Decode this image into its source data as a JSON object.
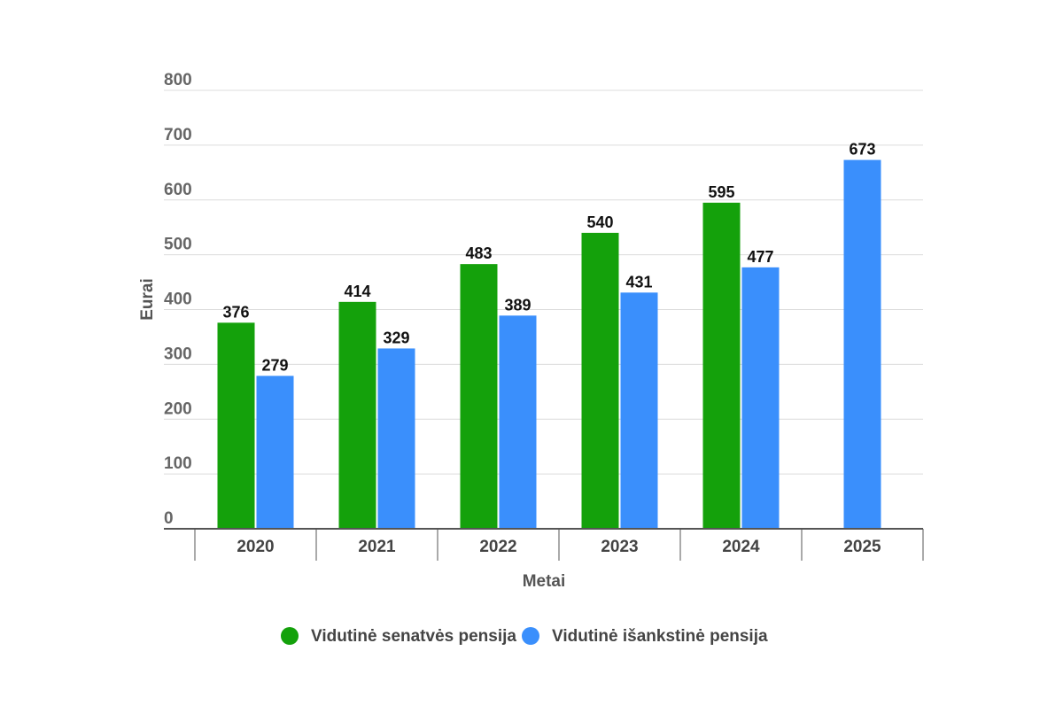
{
  "chart_data": {
    "type": "bar",
    "title": "",
    "xlabel": "Metai",
    "ylabel": "Eurai",
    "categories": [
      "2020",
      "2021",
      "2022",
      "2023",
      "2024",
      "2025"
    ],
    "series": [
      {
        "name": "Vidutinė senatvės pensija",
        "color": "#14a10b",
        "values": [
          376,
          414,
          483,
          540,
          595,
          null
        ]
      },
      {
        "name": "Vidutinė išankstinė pensija",
        "color": "#3a8ffc",
        "values": [
          279,
          329,
          389,
          431,
          477,
          673
        ]
      }
    ],
    "ylim": [
      0,
      800
    ],
    "yticks": [
      0,
      100,
      200,
      300,
      400,
      500,
      600,
      700,
      800
    ],
    "grid": true,
    "legend_position": "bottom",
    "data_labels": true
  }
}
